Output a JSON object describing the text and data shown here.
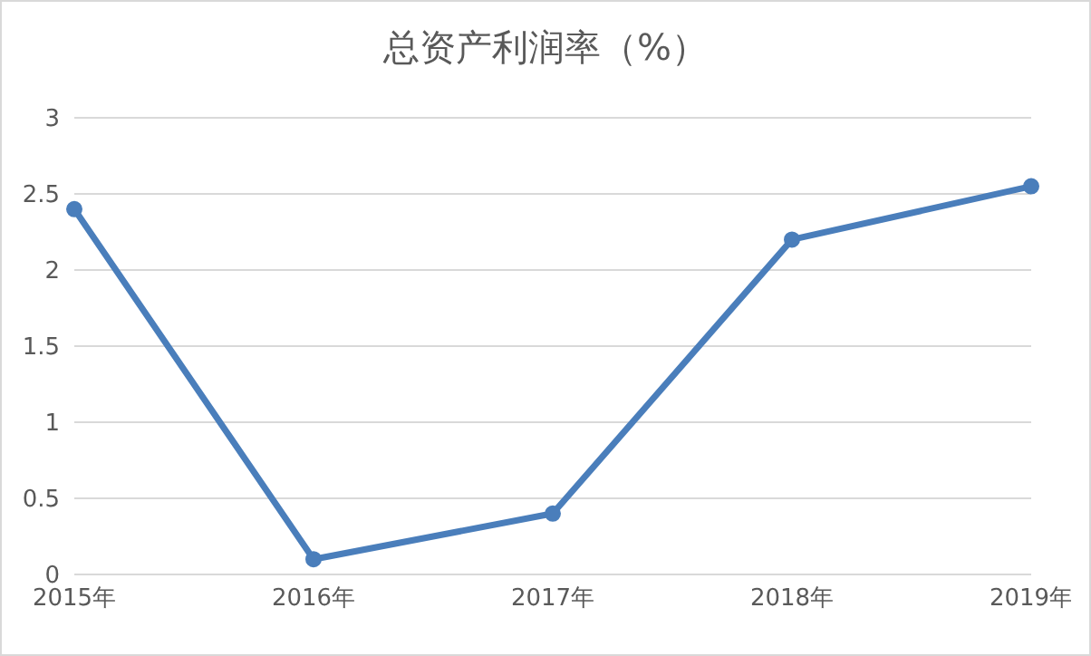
{
  "chart_data": {
    "type": "line",
    "title": "总资产利润率（%）",
    "categories": [
      "2015年",
      "2016年",
      "2017年",
      "2018年",
      "2019年"
    ],
    "series": [
      {
        "color": "#4a7ebb",
        "values": [
          2.4,
          0.1,
          0.4,
          2.2,
          2.55
        ]
      }
    ],
    "ylim": [
      0,
      3
    ],
    "yticks": [
      0,
      0.5,
      1,
      1.5,
      2,
      2.5,
      3
    ],
    "grid": "y",
    "legend": false,
    "marker": "circle",
    "line_style": "solid"
  }
}
